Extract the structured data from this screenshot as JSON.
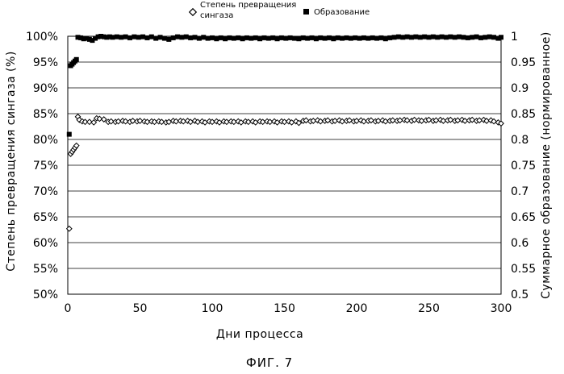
{
  "chart_data": {
    "type": "scatter",
    "caption": "ФИГ. 7",
    "xlabel": "Дни процесса",
    "ylabel_left": "Степень превращения сингаза (%)",
    "ylabel_right": "Суммарное образование (нормированное)",
    "xlim": [
      0,
      300
    ],
    "ylim_left": [
      50,
      100
    ],
    "ylim_right": [
      0.5,
      1.0
    ],
    "x_ticks": [
      "0",
      "50",
      "100",
      "150",
      "200",
      "250",
      "300"
    ],
    "y_ticks_left": [
      "100%",
      "95%",
      "90%",
      "85%",
      "80%",
      "75%",
      "70%",
      "65%",
      "60%",
      "55%",
      "50%"
    ],
    "y_ticks_right": [
      "1",
      "0.95",
      "0.9",
      "0.85",
      "0.8",
      "0.75",
      "0.7",
      "0.65",
      "0.6",
      "0.55",
      "0.5"
    ],
    "grid": true,
    "legend_position": "top",
    "series": [
      {
        "name": "Степень превращения сингаза",
        "axis": "left",
        "marker": "diamond-open",
        "color": "#000000",
        "points": [
          [
            1,
            62.7
          ],
          [
            2,
            77.2
          ],
          [
            3,
            77.6
          ],
          [
            4,
            78.0
          ],
          [
            5,
            78.4
          ],
          [
            6,
            78.8
          ],
          [
            7,
            84.4
          ],
          [
            8,
            83.8
          ],
          [
            10,
            83.5
          ],
          [
            12,
            83.4
          ],
          [
            15,
            83.4
          ],
          [
            18,
            83.3
          ],
          [
            20,
            84.1
          ],
          [
            22,
            84.0
          ],
          [
            25,
            83.9
          ],
          [
            28,
            83.4
          ],
          [
            30,
            83.5
          ],
          [
            33,
            83.4
          ],
          [
            35,
            83.5
          ],
          [
            38,
            83.6
          ],
          [
            40,
            83.5
          ],
          [
            43,
            83.4
          ],
          [
            45,
            83.6
          ],
          [
            48,
            83.5
          ],
          [
            50,
            83.6
          ],
          [
            53,
            83.5
          ],
          [
            55,
            83.4
          ],
          [
            58,
            83.5
          ],
          [
            60,
            83.4
          ],
          [
            63,
            83.5
          ],
          [
            65,
            83.4
          ],
          [
            68,
            83.3
          ],
          [
            70,
            83.4
          ],
          [
            73,
            83.6
          ],
          [
            75,
            83.5
          ],
          [
            78,
            83.6
          ],
          [
            80,
            83.5
          ],
          [
            83,
            83.6
          ],
          [
            85,
            83.4
          ],
          [
            88,
            83.6
          ],
          [
            90,
            83.4
          ],
          [
            93,
            83.5
          ],
          [
            95,
            83.3
          ],
          [
            98,
            83.5
          ],
          [
            100,
            83.4
          ],
          [
            103,
            83.5
          ],
          [
            105,
            83.3
          ],
          [
            108,
            83.5
          ],
          [
            110,
            83.4
          ],
          [
            113,
            83.5
          ],
          [
            115,
            83.4
          ],
          [
            118,
            83.5
          ],
          [
            120,
            83.3
          ],
          [
            123,
            83.5
          ],
          [
            125,
            83.4
          ],
          [
            128,
            83.5
          ],
          [
            130,
            83.3
          ],
          [
            133,
            83.5
          ],
          [
            135,
            83.4
          ],
          [
            138,
            83.5
          ],
          [
            140,
            83.4
          ],
          [
            143,
            83.5
          ],
          [
            145,
            83.3
          ],
          [
            148,
            83.5
          ],
          [
            150,
            83.4
          ],
          [
            153,
            83.5
          ],
          [
            155,
            83.3
          ],
          [
            158,
            83.5
          ],
          [
            160,
            83.2
          ],
          [
            163,
            83.6
          ],
          [
            165,
            83.7
          ],
          [
            168,
            83.5
          ],
          [
            170,
            83.6
          ],
          [
            173,
            83.7
          ],
          [
            175,
            83.5
          ],
          [
            178,
            83.6
          ],
          [
            180,
            83.7
          ],
          [
            183,
            83.5
          ],
          [
            185,
            83.6
          ],
          [
            188,
            83.7
          ],
          [
            190,
            83.5
          ],
          [
            193,
            83.6
          ],
          [
            195,
            83.7
          ],
          [
            198,
            83.5
          ],
          [
            200,
            83.6
          ],
          [
            203,
            83.7
          ],
          [
            205,
            83.5
          ],
          [
            208,
            83.6
          ],
          [
            210,
            83.7
          ],
          [
            213,
            83.5
          ],
          [
            215,
            83.6
          ],
          [
            218,
            83.7
          ],
          [
            220,
            83.5
          ],
          [
            223,
            83.6
          ],
          [
            225,
            83.7
          ],
          [
            228,
            83.6
          ],
          [
            230,
            83.7
          ],
          [
            233,
            83.8
          ],
          [
            235,
            83.7
          ],
          [
            238,
            83.6
          ],
          [
            240,
            83.8
          ],
          [
            243,
            83.7
          ],
          [
            245,
            83.6
          ],
          [
            248,
            83.7
          ],
          [
            250,
            83.8
          ],
          [
            253,
            83.6
          ],
          [
            255,
            83.7
          ],
          [
            258,
            83.8
          ],
          [
            260,
            83.6
          ],
          [
            263,
            83.7
          ],
          [
            265,
            83.8
          ],
          [
            268,
            83.6
          ],
          [
            270,
            83.7
          ],
          [
            273,
            83.8
          ],
          [
            275,
            83.6
          ],
          [
            278,
            83.7
          ],
          [
            280,
            83.8
          ],
          [
            283,
            83.6
          ],
          [
            285,
            83.7
          ],
          [
            288,
            83.8
          ],
          [
            290,
            83.6
          ],
          [
            293,
            83.7
          ],
          [
            295,
            83.5
          ],
          [
            298,
            83.3
          ],
          [
            300,
            83.1
          ]
        ]
      },
      {
        "name": "Образование",
        "axis": "right",
        "marker": "square-filled",
        "color": "#000000",
        "points": [
          [
            1,
            0.81
          ],
          [
            2,
            0.943
          ],
          [
            3,
            0.946
          ],
          [
            4,
            0.949
          ],
          [
            5,
            0.952
          ],
          [
            6,
            0.955
          ],
          [
            7,
            0.998
          ],
          [
            9,
            0.997
          ],
          [
            11,
            0.995
          ],
          [
            13,
            0.996
          ],
          [
            15,
            0.994
          ],
          [
            17,
            0.992
          ],
          [
            19,
            0.996
          ],
          [
            21,
            0.999
          ],
          [
            23,
            1.0
          ],
          [
            25,
            0.999
          ],
          [
            27,
            0.998
          ],
          [
            29,
            0.999
          ],
          [
            31,
            0.998
          ],
          [
            34,
            0.999
          ],
          [
            37,
            0.998
          ],
          [
            40,
            0.999
          ],
          [
            43,
            0.997
          ],
          [
            46,
            0.999
          ],
          [
            49,
            0.998
          ],
          [
            52,
            0.999
          ],
          [
            55,
            0.997
          ],
          [
            58,
            0.999
          ],
          [
            61,
            0.996
          ],
          [
            64,
            0.998
          ],
          [
            67,
            0.996
          ],
          [
            70,
            0.994
          ],
          [
            73,
            0.997
          ],
          [
            76,
            0.999
          ],
          [
            79,
            0.998
          ],
          [
            82,
            0.999
          ],
          [
            85,
            0.997
          ],
          [
            88,
            0.998
          ],
          [
            91,
            0.996
          ],
          [
            94,
            0.998
          ],
          [
            97,
            0.996
          ],
          [
            100,
            0.997
          ],
          [
            103,
            0.995
          ],
          [
            106,
            0.997
          ],
          [
            109,
            0.995
          ],
          [
            112,
            0.997
          ],
          [
            115,
            0.996
          ],
          [
            118,
            0.997
          ],
          [
            121,
            0.995
          ],
          [
            124,
            0.997
          ],
          [
            127,
            0.996
          ],
          [
            130,
            0.997
          ],
          [
            133,
            0.995
          ],
          [
            136,
            0.997
          ],
          [
            139,
            0.996
          ],
          [
            142,
            0.997
          ],
          [
            145,
            0.995
          ],
          [
            148,
            0.997
          ],
          [
            151,
            0.996
          ],
          [
            154,
            0.997
          ],
          [
            157,
            0.996
          ],
          [
            160,
            0.995
          ],
          [
            163,
            0.997
          ],
          [
            166,
            0.996
          ],
          [
            169,
            0.997
          ],
          [
            172,
            0.995
          ],
          [
            175,
            0.997
          ],
          [
            178,
            0.996
          ],
          [
            181,
            0.997
          ],
          [
            184,
            0.995
          ],
          [
            187,
            0.997
          ],
          [
            190,
            0.996
          ],
          [
            193,
            0.997
          ],
          [
            196,
            0.996
          ],
          [
            199,
            0.997
          ],
          [
            202,
            0.996
          ],
          [
            205,
            0.997
          ],
          [
            208,
            0.996
          ],
          [
            211,
            0.997
          ],
          [
            214,
            0.996
          ],
          [
            217,
            0.997
          ],
          [
            220,
            0.995
          ],
          [
            223,
            0.997
          ],
          [
            226,
            0.998
          ],
          [
            229,
            0.999
          ],
          [
            232,
            0.998
          ],
          [
            235,
            0.999
          ],
          [
            238,
            0.998
          ],
          [
            241,
            0.999
          ],
          [
            244,
            0.998
          ],
          [
            247,
            0.999
          ],
          [
            250,
            0.998
          ],
          [
            253,
            0.999
          ],
          [
            256,
            0.998
          ],
          [
            259,
            0.999
          ],
          [
            262,
            0.998
          ],
          [
            265,
            0.999
          ],
          [
            268,
            0.998
          ],
          [
            271,
            0.999
          ],
          [
            274,
            0.998
          ],
          [
            277,
            0.997
          ],
          [
            280,
            0.998
          ],
          [
            283,
            0.999
          ],
          [
            286,
            0.997
          ],
          [
            289,
            0.998
          ],
          [
            292,
            0.999
          ],
          [
            295,
            0.998
          ],
          [
            298,
            0.996
          ],
          [
            300,
            0.998
          ]
        ]
      }
    ]
  }
}
